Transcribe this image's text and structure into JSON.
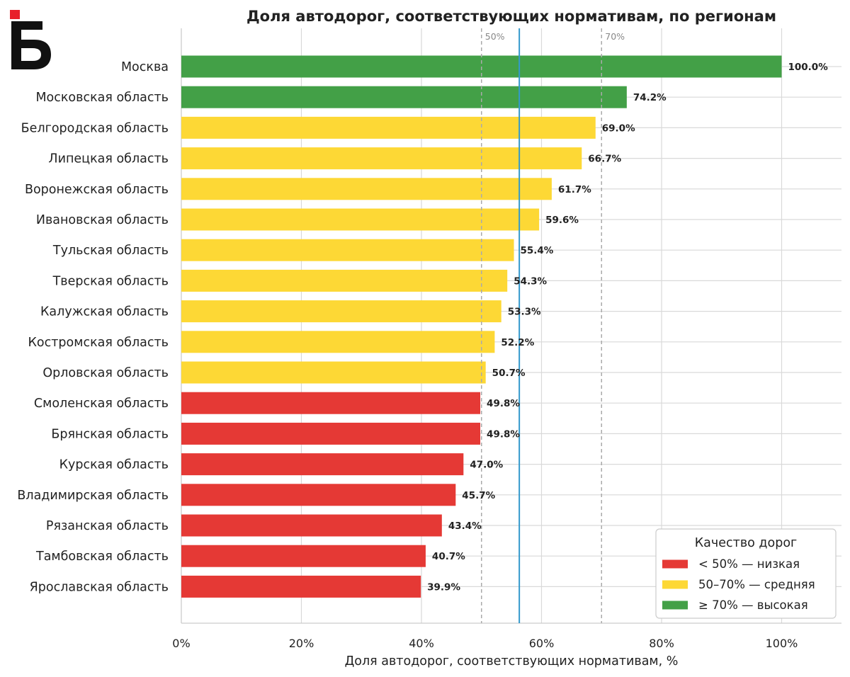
{
  "logo": {
    "name": "business-online-logo"
  },
  "chart_data": {
    "type": "bar",
    "orientation": "horizontal",
    "title": "Доля автодорог, соответствующих нормативам, по регионам",
    "xlabel": "Доля автодорог, соответствующих нормативам, %",
    "ylabel": "",
    "xlim": [
      0,
      110
    ],
    "xticks": [
      0,
      20,
      40,
      60,
      80,
      100
    ],
    "xtick_labels": [
      "0%",
      "20%",
      "40%",
      "60%",
      "80%",
      "100%"
    ],
    "grid": true,
    "mean_line": 56.3,
    "reference_lines": [
      {
        "value": 50,
        "label": "50%"
      },
      {
        "value": 70,
        "label": "70%"
      }
    ],
    "categories": [
      "Москва",
      "Московская область",
      "Белгородская область",
      "Липецкая область",
      "Воронежская область",
      "Ивановская область",
      "Тульская область",
      "Тверская область",
      "Калужская область",
      "Костромская область",
      "Орловская область",
      "Смоленская область",
      "Брянская область",
      "Курская область",
      "Владимирская область",
      "Рязанская область",
      "Тамбовская область",
      "Ярославская область"
    ],
    "values": [
      100.0,
      74.2,
      69.0,
      66.7,
      61.7,
      59.6,
      55.4,
      54.3,
      53.3,
      52.2,
      50.7,
      49.8,
      49.8,
      47.0,
      45.7,
      43.4,
      40.7,
      39.9
    ],
    "value_labels": [
      "100.0%",
      "74.2%",
      "69.0%",
      "66.7%",
      "61.7%",
      "59.6%",
      "55.4%",
      "54.3%",
      "53.3%",
      "52.2%",
      "50.7%",
      "49.8%",
      "49.8%",
      "47.0%",
      "45.7%",
      "43.4%",
      "40.7%",
      "39.9%"
    ],
    "bar_groups": [
      "high",
      "high",
      "medium",
      "medium",
      "medium",
      "medium",
      "medium",
      "medium",
      "medium",
      "medium",
      "medium",
      "low",
      "low",
      "low",
      "low",
      "low",
      "low",
      "low"
    ],
    "colors": {
      "low": "#e53935",
      "medium": "#fdd835",
      "high": "#43a047",
      "mean_line": "#3399cc",
      "reference_line": "#aaaaaa",
      "grid": "#d9d9d9"
    },
    "legend": {
      "title": "Качество дорог",
      "position": "bottom-right",
      "items": [
        {
          "label": "< 50% — низкая",
          "group": "low"
        },
        {
          "label": "50–70% — средняя",
          "group": "medium"
        },
        {
          "label": "≥ 70% — высокая",
          "group": "high"
        }
      ]
    }
  }
}
